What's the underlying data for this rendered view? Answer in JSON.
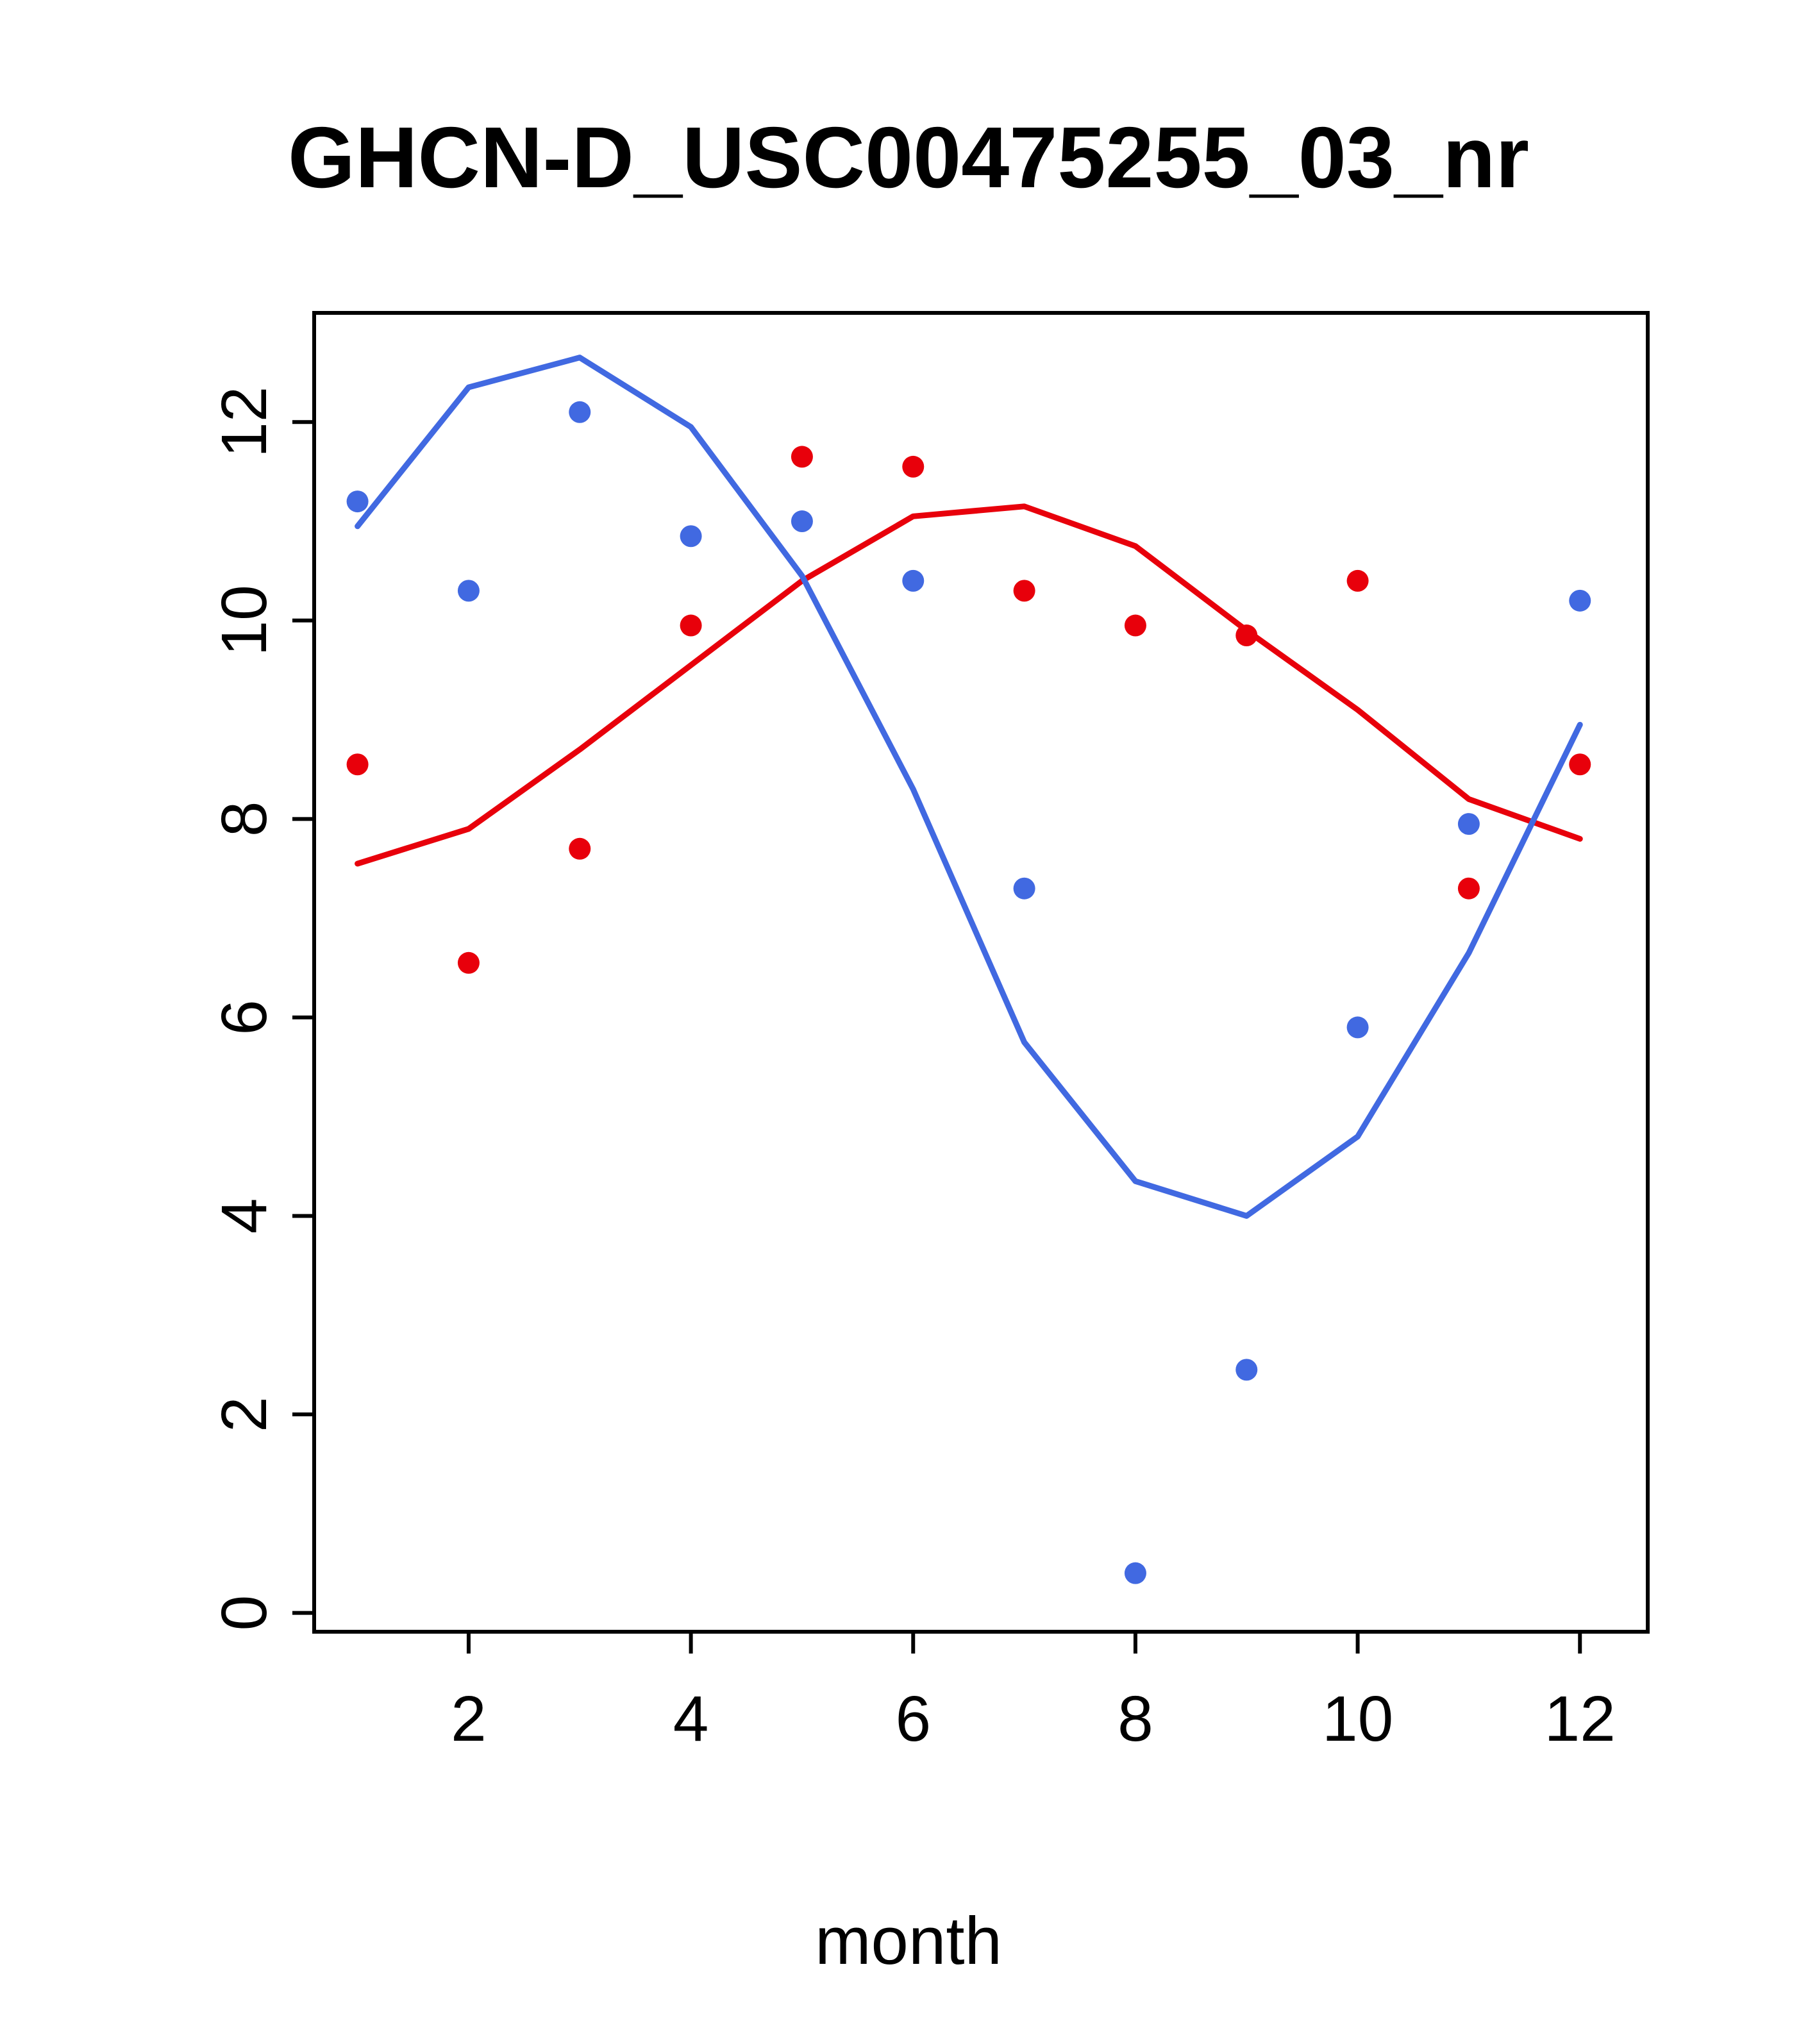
{
  "chart_data": {
    "type": "scatter",
    "title": "GHCN-D_USC00475255_03_nr",
    "xlabel": "month",
    "ylabel": "",
    "x": [
      1,
      2,
      3,
      4,
      5,
      6,
      7,
      8,
      9,
      10,
      11,
      12
    ],
    "xticks": [
      2,
      4,
      6,
      8,
      10,
      12
    ],
    "yticks": [
      0,
      2,
      4,
      6,
      8,
      10,
      12
    ],
    "xlim": [
      0.61,
      12.61
    ],
    "ylim": [
      -0.19,
      13.1
    ],
    "grid": false,
    "legend": "none",
    "colors": {
      "blue": "#4169E1",
      "red": "#E8000B",
      "axis": "#000000",
      "background": "#FFFFFF"
    },
    "series": [
      {
        "name": "red-trend-line",
        "type": "line",
        "color": "#E8000B",
        "values": [
          7.55,
          7.9,
          8.7,
          9.55,
          10.4,
          11.05,
          11.15,
          10.75,
          9.9,
          9.1,
          8.2,
          7.8
        ]
      },
      {
        "name": "blue-trend-line",
        "type": "line",
        "color": "#4169E1",
        "values": [
          10.95,
          12.35,
          12.65,
          11.95,
          10.45,
          8.3,
          5.75,
          4.35,
          4.0,
          4.8,
          6.65,
          8.95
        ]
      },
      {
        "name": "red-points",
        "type": "points",
        "color": "#E8000B",
        "values": [
          8.55,
          6.55,
          7.7,
          9.95,
          11.65,
          11.55,
          10.3,
          9.95,
          9.85,
          10.4,
          7.3,
          8.55
        ]
      },
      {
        "name": "blue-points",
        "type": "points",
        "color": "#4169E1",
        "values": [
          11.2,
          10.3,
          12.1,
          10.85,
          11.0,
          10.4,
          7.3,
          0.4,
          2.45,
          5.9,
          7.95,
          10.2
        ]
      }
    ]
  }
}
